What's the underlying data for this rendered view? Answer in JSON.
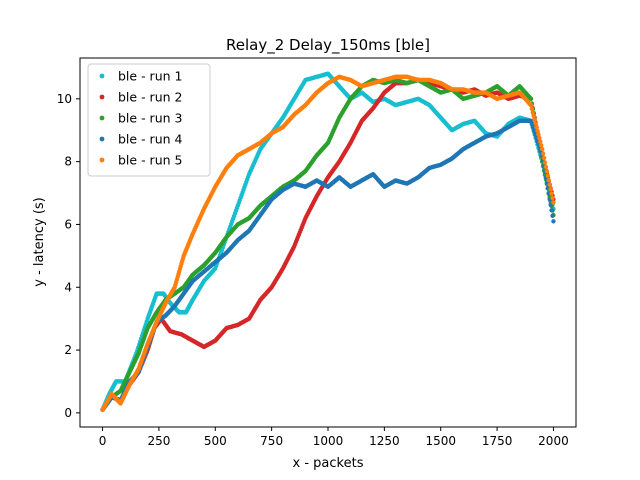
{
  "chart_data": {
    "type": "scatter",
    "title": "Relay_2 Delay_150ms [ble]",
    "xlabel": "x - packets",
    "ylabel": "y - latency (s)",
    "xlim": [
      -100,
      2100
    ],
    "ylim": [
      -0.45,
      11.3
    ],
    "xticks": [
      0,
      250,
      500,
      750,
      1000,
      1250,
      1500,
      1750,
      2000
    ],
    "yticks": [
      0,
      2,
      4,
      6,
      8,
      10
    ],
    "grid": false,
    "legend_position": "top-left",
    "series": [
      {
        "name": "ble - run 1",
        "color": "#17becf",
        "points": [
          [
            0,
            0.1
          ],
          [
            30,
            0.6
          ],
          [
            60,
            1.0
          ],
          [
            100,
            1.0
          ],
          [
            150,
            1.9
          ],
          [
            200,
            3.0
          ],
          [
            240,
            3.8
          ],
          [
            270,
            3.8
          ],
          [
            300,
            3.5
          ],
          [
            340,
            3.2
          ],
          [
            370,
            3.2
          ],
          [
            400,
            3.6
          ],
          [
            450,
            4.2
          ],
          [
            500,
            4.6
          ],
          [
            550,
            5.6
          ],
          [
            600,
            6.6
          ],
          [
            650,
            7.6
          ],
          [
            700,
            8.4
          ],
          [
            750,
            8.9
          ],
          [
            800,
            9.4
          ],
          [
            850,
            10.0
          ],
          [
            900,
            10.6
          ],
          [
            950,
            10.7
          ],
          [
            1000,
            10.8
          ],
          [
            1050,
            10.4
          ],
          [
            1100,
            10.0
          ],
          [
            1150,
            10.2
          ],
          [
            1200,
            9.9
          ],
          [
            1250,
            10.0
          ],
          [
            1300,
            9.8
          ],
          [
            1350,
            9.9
          ],
          [
            1400,
            10.0
          ],
          [
            1450,
            9.8
          ],
          [
            1500,
            9.4
          ],
          [
            1550,
            9.0
          ],
          [
            1600,
            9.2
          ],
          [
            1650,
            9.3
          ],
          [
            1700,
            8.9
          ],
          [
            1750,
            8.8
          ],
          [
            1800,
            9.2
          ],
          [
            1850,
            9.4
          ],
          [
            1900,
            9.3
          ],
          [
            1950,
            8.0
          ],
          [
            2000,
            6.5
          ]
        ]
      },
      {
        "name": "ble - run 2",
        "color": "#d62728",
        "points": [
          [
            0,
            0.1
          ],
          [
            40,
            0.5
          ],
          [
            80,
            0.4
          ],
          [
            120,
            0.9
          ],
          [
            160,
            1.3
          ],
          [
            200,
            2.0
          ],
          [
            230,
            2.7
          ],
          [
            260,
            3.0
          ],
          [
            300,
            2.6
          ],
          [
            350,
            2.5
          ],
          [
            400,
            2.3
          ],
          [
            450,
            2.1
          ],
          [
            500,
            2.3
          ],
          [
            550,
            2.7
          ],
          [
            600,
            2.8
          ],
          [
            650,
            3.0
          ],
          [
            700,
            3.6
          ],
          [
            750,
            4.0
          ],
          [
            800,
            4.6
          ],
          [
            850,
            5.3
          ],
          [
            900,
            6.2
          ],
          [
            950,
            6.9
          ],
          [
            1000,
            7.5
          ],
          [
            1050,
            8.0
          ],
          [
            1100,
            8.6
          ],
          [
            1150,
            9.3
          ],
          [
            1200,
            9.7
          ],
          [
            1250,
            10.2
          ],
          [
            1300,
            10.5
          ],
          [
            1350,
            10.5
          ],
          [
            1400,
            10.6
          ],
          [
            1450,
            10.5
          ],
          [
            1500,
            10.4
          ],
          [
            1550,
            10.3
          ],
          [
            1600,
            10.2
          ],
          [
            1650,
            10.3
          ],
          [
            1700,
            10.1
          ],
          [
            1750,
            10.2
          ],
          [
            1800,
            10.0
          ],
          [
            1850,
            10.1
          ],
          [
            1900,
            10.0
          ],
          [
            1950,
            8.2
          ],
          [
            2000,
            6.8
          ]
        ]
      },
      {
        "name": "ble - run 3",
        "color": "#2ca02c",
        "points": [
          [
            0,
            0.1
          ],
          [
            40,
            0.5
          ],
          [
            80,
            0.7
          ],
          [
            120,
            1.3
          ],
          [
            160,
            1.9
          ],
          [
            200,
            2.7
          ],
          [
            240,
            3.2
          ],
          [
            280,
            3.6
          ],
          [
            320,
            3.8
          ],
          [
            360,
            4.0
          ],
          [
            400,
            4.4
          ],
          [
            450,
            4.7
          ],
          [
            500,
            5.1
          ],
          [
            550,
            5.6
          ],
          [
            600,
            6.0
          ],
          [
            650,
            6.2
          ],
          [
            700,
            6.6
          ],
          [
            750,
            6.9
          ],
          [
            800,
            7.2
          ],
          [
            850,
            7.4
          ],
          [
            900,
            7.7
          ],
          [
            950,
            8.2
          ],
          [
            1000,
            8.6
          ],
          [
            1050,
            9.4
          ],
          [
            1100,
            10.0
          ],
          [
            1150,
            10.4
          ],
          [
            1200,
            10.6
          ],
          [
            1250,
            10.5
          ],
          [
            1300,
            10.6
          ],
          [
            1350,
            10.5
          ],
          [
            1400,
            10.6
          ],
          [
            1450,
            10.4
          ],
          [
            1500,
            10.2
          ],
          [
            1550,
            10.3
          ],
          [
            1600,
            10.0
          ],
          [
            1650,
            10.1
          ],
          [
            1700,
            10.2
          ],
          [
            1750,
            10.4
          ],
          [
            1800,
            10.1
          ],
          [
            1850,
            10.4
          ],
          [
            1900,
            10.0
          ],
          [
            1950,
            8.0
          ],
          [
            2000,
            6.3
          ]
        ]
      },
      {
        "name": "ble - run 4",
        "color": "#1f77b4",
        "points": [
          [
            0,
            0.1
          ],
          [
            40,
            0.5
          ],
          [
            80,
            0.4
          ],
          [
            120,
            1.0
          ],
          [
            160,
            1.3
          ],
          [
            200,
            2.1
          ],
          [
            240,
            2.9
          ],
          [
            280,
            3.1
          ],
          [
            320,
            3.4
          ],
          [
            360,
            3.8
          ],
          [
            400,
            4.2
          ],
          [
            450,
            4.5
          ],
          [
            500,
            4.8
          ],
          [
            550,
            5.1
          ],
          [
            600,
            5.5
          ],
          [
            650,
            5.8
          ],
          [
            700,
            6.3
          ],
          [
            750,
            6.8
          ],
          [
            800,
            7.1
          ],
          [
            850,
            7.3
          ],
          [
            900,
            7.2
          ],
          [
            950,
            7.4
          ],
          [
            1000,
            7.2
          ],
          [
            1050,
            7.5
          ],
          [
            1100,
            7.2
          ],
          [
            1150,
            7.4
          ],
          [
            1200,
            7.6
          ],
          [
            1250,
            7.2
          ],
          [
            1300,
            7.4
          ],
          [
            1350,
            7.3
          ],
          [
            1400,
            7.5
          ],
          [
            1450,
            7.8
          ],
          [
            1500,
            7.9
          ],
          [
            1550,
            8.1
          ],
          [
            1600,
            8.4
          ],
          [
            1650,
            8.6
          ],
          [
            1700,
            8.8
          ],
          [
            1750,
            8.9
          ],
          [
            1800,
            9.1
          ],
          [
            1850,
            9.3
          ],
          [
            1900,
            9.3
          ],
          [
            1950,
            8.2
          ],
          [
            2000,
            6.1
          ]
        ]
      },
      {
        "name": "ble - run 5",
        "color": "#ff7f0e",
        "points": [
          [
            0,
            0.1
          ],
          [
            40,
            0.6
          ],
          [
            80,
            0.3
          ],
          [
            120,
            0.9
          ],
          [
            160,
            1.4
          ],
          [
            200,
            2.2
          ],
          [
            240,
            2.9
          ],
          [
            280,
            3.5
          ],
          [
            320,
            4.0
          ],
          [
            360,
            5.0
          ],
          [
            400,
            5.7
          ],
          [
            450,
            6.5
          ],
          [
            500,
            7.2
          ],
          [
            550,
            7.8
          ],
          [
            600,
            8.2
          ],
          [
            650,
            8.4
          ],
          [
            700,
            8.6
          ],
          [
            750,
            8.9
          ],
          [
            800,
            9.1
          ],
          [
            850,
            9.5
          ],
          [
            900,
            9.8
          ],
          [
            950,
            10.2
          ],
          [
            1000,
            10.5
          ],
          [
            1050,
            10.7
          ],
          [
            1100,
            10.6
          ],
          [
            1150,
            10.4
          ],
          [
            1200,
            10.5
          ],
          [
            1250,
            10.6
          ],
          [
            1300,
            10.7
          ],
          [
            1350,
            10.7
          ],
          [
            1400,
            10.6
          ],
          [
            1450,
            10.6
          ],
          [
            1500,
            10.5
          ],
          [
            1550,
            10.3
          ],
          [
            1600,
            10.3
          ],
          [
            1650,
            10.2
          ],
          [
            1700,
            10.2
          ],
          [
            1750,
            10.0
          ],
          [
            1800,
            10.1
          ],
          [
            1850,
            10.2
          ],
          [
            1900,
            9.8
          ],
          [
            1950,
            8.4
          ],
          [
            2000,
            6.7
          ]
        ]
      }
    ]
  }
}
